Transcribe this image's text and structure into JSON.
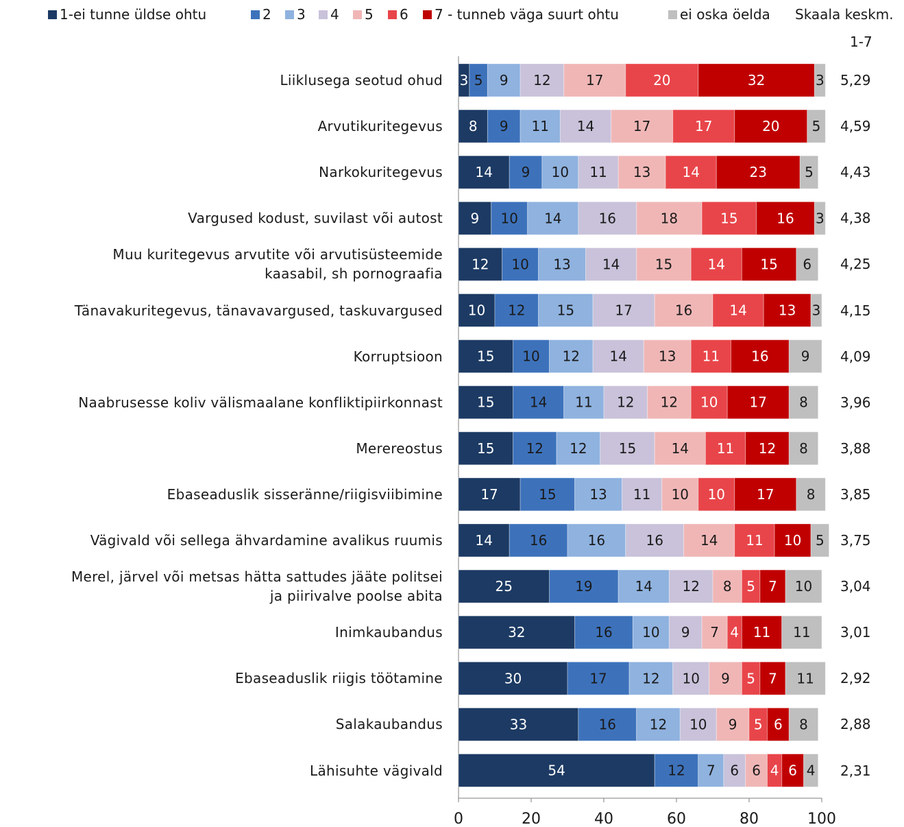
{
  "legend": {
    "items": [
      {
        "label": "1-ei tunne üldse ohtu",
        "color": "#1c3a63"
      },
      {
        "label": "2",
        "color": "#3d72bb"
      },
      {
        "label": "3",
        "color": "#8fb2df"
      },
      {
        "label": "4",
        "color": "#c9c2da"
      },
      {
        "label": "5",
        "color": "#f0b6b6"
      },
      {
        "label": "6",
        "color": "#e8454a"
      },
      {
        "label": "7 - tunneb väga suurt ohtu",
        "color": "#c00000"
      },
      {
        "label": "ei oska öelda",
        "color": "#bfbfbf"
      }
    ],
    "avg_header_line1": "Skaala keskm.",
    "avg_header_line2": "1-7"
  },
  "chart_data": {
    "type": "bar",
    "orientation": "horizontal",
    "stacked": true,
    "xlim": [
      0,
      100
    ],
    "x_ticks": [
      "0",
      "20",
      "40",
      "60",
      "80",
      "100"
    ],
    "categories": [
      "Liiklusega seotud ohud",
      "Arvutikuritegevus",
      "Narkokuritegevus",
      "Vargused kodust, suvilast või autost",
      "Muu kuritegevus arvutite või arvutisüsteemide\nkaasabil, sh pornograafia",
      "Tänavakuritegevus, tänavavargused, taskuvargused",
      "Korruptsioon",
      "Naabrusesse koliv välismaalane konfliktipiirkonnast",
      "Merereostus",
      "Ebaseaduslik sisseränne/riigisviibimine",
      "Vägivald või sellega ähvardamine avalikus ruumis",
      "Merel, järvel või metsas hätta sattudes jääte politsei\nja piirivalve poolse abita",
      "Inimkaubandus",
      "Ebaseaduslik riigis töötamine",
      "Salakaubandus",
      "Lähisuhte vägivald"
    ],
    "series": [
      {
        "name": "1-ei tunne üldse ohtu",
        "values": [
          3,
          8,
          14,
          9,
          12,
          10,
          15,
          15,
          15,
          17,
          14,
          25,
          32,
          30,
          33,
          54
        ]
      },
      {
        "name": "2",
        "values": [
          5,
          9,
          9,
          10,
          10,
          12,
          10,
          14,
          12,
          15,
          16,
          19,
          16,
          17,
          16,
          12
        ]
      },
      {
        "name": "3",
        "values": [
          9,
          11,
          10,
          14,
          13,
          15,
          12,
          11,
          12,
          13,
          16,
          14,
          10,
          12,
          12,
          7
        ]
      },
      {
        "name": "4",
        "values": [
          12,
          14,
          11,
          16,
          14,
          17,
          14,
          12,
          15,
          11,
          16,
          12,
          9,
          10,
          10,
          6
        ]
      },
      {
        "name": "5",
        "values": [
          17,
          17,
          13,
          18,
          15,
          16,
          13,
          12,
          14,
          10,
          14,
          8,
          7,
          9,
          9,
          6
        ]
      },
      {
        "name": "6",
        "values": [
          20,
          17,
          14,
          15,
          14,
          14,
          11,
          10,
          11,
          10,
          11,
          5,
          4,
          5,
          5,
          4
        ]
      },
      {
        "name": "7 - tunneb väga suurt ohtu",
        "values": [
          32,
          20,
          23,
          16,
          15,
          13,
          16,
          17,
          12,
          17,
          10,
          7,
          11,
          7,
          6,
          6
        ]
      },
      {
        "name": "ei oska öelda",
        "values": [
          3,
          5,
          5,
          3,
          6,
          3,
          9,
          8,
          8,
          8,
          5,
          10,
          11,
          11,
          8,
          4
        ]
      }
    ],
    "averages": [
      "5,29",
      "4,59",
      "4,43",
      "4,38",
      "4,25",
      "4,15",
      "4,09",
      "3,96",
      "3,88",
      "3,85",
      "3,75",
      "3,04",
      "3,01",
      "2,92",
      "2,88",
      "2,31"
    ]
  }
}
